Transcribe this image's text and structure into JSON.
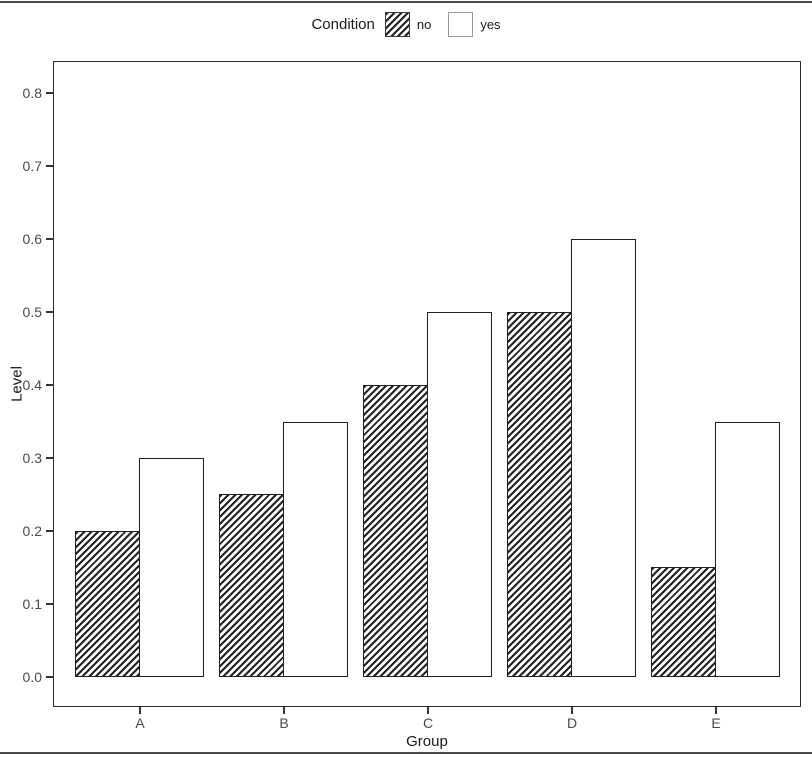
{
  "chart_data": {
    "type": "bar",
    "title": "",
    "xlabel": "Group",
    "ylabel": "Level",
    "categories": [
      "A",
      "B",
      "C",
      "D",
      "E"
    ],
    "series": [
      {
        "name": "no",
        "fill": "diagonal-hatch",
        "values": [
          0.2,
          0.25,
          0.4,
          0.5,
          0.15
        ]
      },
      {
        "name": "yes",
        "fill": "solid-white",
        "values": [
          0.3,
          0.35,
          0.5,
          0.6,
          0.35
        ]
      }
    ],
    "ylim": [
      0,
      0.8
    ],
    "yticks": [
      0.0,
      0.1,
      0.2,
      0.3,
      0.4,
      0.5,
      0.6,
      0.7,
      0.8
    ],
    "ytick_labels": [
      "0.0",
      "0.1",
      "0.2",
      "0.3",
      "0.4",
      "0.5",
      "0.6",
      "0.7",
      "0.8"
    ],
    "grid": false,
    "legend_position": "top",
    "bar_grouping": "dodged"
  },
  "legend": {
    "title": "Condition",
    "items": [
      {
        "label": "no",
        "pattern": "diagonal-hatch"
      },
      {
        "label": "yes",
        "pattern": "solid-white"
      }
    ]
  },
  "colors": {
    "background": "#ffffff",
    "bar_stroke": "#1f1f1f",
    "hatch_stroke": "#222222",
    "panel_border": "#2b2b2b",
    "axis_text": "#4a4a4a",
    "title_text": "#1a1a1a",
    "rule": "#4a4a4a"
  }
}
